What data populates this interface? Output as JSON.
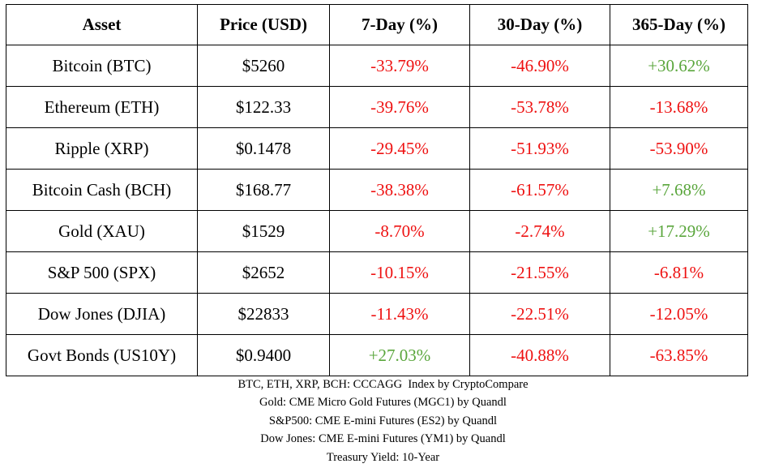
{
  "colors": {
    "negative": "#ee1111",
    "positive": "#5aa63c",
    "text": "#000000",
    "border": "#000000"
  },
  "table": {
    "headers": [
      "Asset",
      "Price (USD)",
      "7-Day (%)",
      "30-Day (%)",
      "365-Day (%)"
    ],
    "rows": [
      {
        "asset": "Bitcoin (BTC)",
        "price": "$5260",
        "d7": "-33.79%",
        "d30": "-46.90%",
        "d365": "+30.62%"
      },
      {
        "asset": "Ethereum (ETH)",
        "price": "$122.33",
        "d7": "-39.76%",
        "d30": "-53.78%",
        "d365": "-13.68%"
      },
      {
        "asset": "Ripple (XRP)",
        "price": "$0.1478",
        "d7": "-29.45%",
        "d30": "-51.93%",
        "d365": "-53.90%"
      },
      {
        "asset": "Bitcoin Cash (BCH)",
        "price": "$168.77",
        "d7": "-38.38%",
        "d30": "-61.57%",
        "d365": "+7.68%"
      },
      {
        "asset": "Gold (XAU)",
        "price": "$1529",
        "d7": "-8.70%",
        "d30": "-2.74%",
        "d365": "+17.29%"
      },
      {
        "asset": "S&P 500 (SPX)",
        "price": "$2652",
        "d7": "-10.15%",
        "d30": "-21.55%",
        "d365": "-6.81%"
      },
      {
        "asset": "Dow Jones (DJIA)",
        "price": "$22833",
        "d7": "-11.43%",
        "d30": "-22.51%",
        "d365": "-12.05%"
      },
      {
        "asset": "Govt Bonds (US10Y)",
        "price": "$0.9400",
        "d7": "+27.03%",
        "d30": "-40.88%",
        "d365": "-63.85%"
      }
    ]
  },
  "footnotes": [
    "BTC, ETH, XRP, BCH: CCCAGG  Index by CryptoCompare",
    "Gold: CME Micro Gold Futures (MGC1) by Quandl",
    "S&P500: CME E-mini Futures (ES2) by Quandl",
    "Dow Jones: CME E-mini Futures (YM1) by Quandl",
    "Treasury Yield: 10-Year"
  ]
}
